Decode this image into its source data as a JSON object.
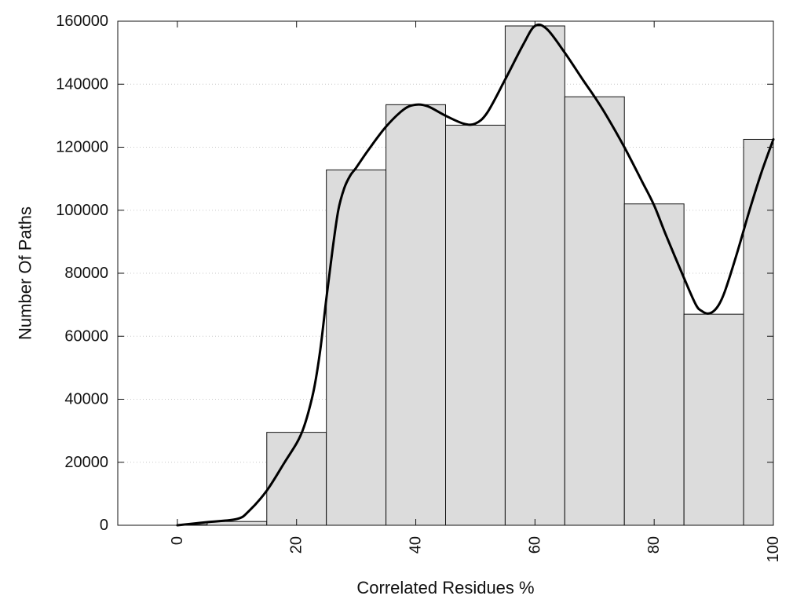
{
  "chart_data": {
    "type": "bar",
    "title": "",
    "xlabel": "Correlated Residues %",
    "ylabel": "Number Of Paths",
    "xlim": [
      -10,
      100
    ],
    "ylim": [
      0,
      160000
    ],
    "x_ticks": [
      0,
      20,
      40,
      60,
      80,
      100
    ],
    "y_ticks": [
      0,
      20000,
      40000,
      60000,
      80000,
      100000,
      120000,
      140000,
      160000
    ],
    "bins": [
      {
        "x_start": 0,
        "x_end": 5,
        "value": 200
      },
      {
        "x_start": 5,
        "x_end": 15,
        "value": 1200
      },
      {
        "x_start": 15,
        "x_end": 25,
        "value": 29500
      },
      {
        "x_start": 25,
        "x_end": 35,
        "value": 112800
      },
      {
        "x_start": 35,
        "x_end": 45,
        "value": 133500
      },
      {
        "x_start": 45,
        "x_end": 55,
        "value": 127000
      },
      {
        "x_start": 55,
        "x_end": 65,
        "value": 158500
      },
      {
        "x_start": 65,
        "x_end": 75,
        "value": 136000
      },
      {
        "x_start": 75,
        "x_end": 85,
        "value": 102000
      },
      {
        "x_start": 85,
        "x_end": 95,
        "value": 67000
      },
      {
        "x_start": 95,
        "x_end": 100,
        "value": 122500
      }
    ],
    "smooth_curve": {
      "x": [
        0,
        5,
        10,
        12,
        15,
        18,
        20,
        21,
        22,
        23,
        24,
        25,
        26,
        27,
        28,
        29,
        30,
        32,
        35,
        38,
        40,
        42,
        45,
        48,
        50,
        52,
        55,
        58,
        60,
        62,
        65,
        68,
        70,
        72,
        75,
        78,
        80,
        82,
        85,
        87,
        88,
        89,
        90,
        91,
        92,
        94,
        96,
        98,
        100
      ],
      "y": [
        0,
        1000,
        2000,
        4500,
        11000,
        20000,
        26000,
        30000,
        36000,
        44000,
        56000,
        72000,
        87000,
        100000,
        107000,
        111000,
        113500,
        119000,
        126500,
        132000,
        133500,
        133000,
        130000,
        127500,
        127500,
        131000,
        141500,
        152500,
        158500,
        157500,
        150000,
        141500,
        136000,
        130000,
        120000,
        109000,
        101500,
        92000,
        78500,
        70000,
        68000,
        67200,
        68000,
        70500,
        75000,
        87000,
        100000,
        112000,
        122500
      ]
    },
    "grid": {
      "y": true,
      "x": false,
      "style": "dotted"
    },
    "colors": {
      "bar_fill": "#dcdcdc",
      "bar_stroke": "#111111",
      "curve": "#000000",
      "grid": "#c8c8c8",
      "axis": "#111111",
      "text": "#111111"
    }
  }
}
